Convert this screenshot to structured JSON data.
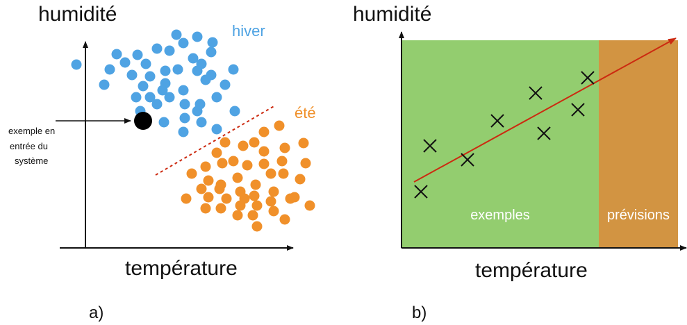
{
  "colors": {
    "winter": "#4fa3e3",
    "summer": "#f0902a",
    "examples_zone": "#93cd6f",
    "forecast_zone": "#d29442",
    "regression_line": "#cc2a10",
    "separator": "#cc2a10",
    "axis": "#111111"
  },
  "panel_a": {
    "caption": "a)",
    "ylabel": "humidité",
    "xlabel": "température",
    "winter_label": "hiver",
    "summer_label": "été",
    "input_label_lines": [
      "exemple  en",
      "entrée du",
      "système"
    ],
    "winter_points": [
      [
        110,
        93
      ],
      [
        168,
        78
      ],
      [
        180,
        90
      ],
      [
        198,
        79
      ],
      [
        226,
        70
      ],
      [
        254,
        50
      ],
      [
        264,
        62
      ],
      [
        284,
        53
      ],
      [
        306,
        61
      ],
      [
        304,
        75
      ],
      [
        244,
        73
      ],
      [
        278,
        84
      ],
      [
        290,
        92
      ],
      [
        158,
        100
      ],
      [
        190,
        108
      ],
      [
        210,
        92
      ],
      [
        216,
        110
      ],
      [
        238,
        102
      ],
      [
        256,
        100
      ],
      [
        284,
        102
      ],
      [
        304,
        108
      ],
      [
        336,
        100
      ],
      [
        150,
        122
      ],
      [
        206,
        124
      ],
      [
        238,
        120
      ],
      [
        264,
        130
      ],
      [
        296,
        115
      ],
      [
        324,
        122
      ],
      [
        196,
        140
      ],
      [
        216,
        140
      ],
      [
        234,
        130
      ],
      [
        244,
        140
      ],
      [
        266,
        150
      ],
      [
        288,
        150
      ],
      [
        312,
        140
      ],
      [
        202,
        160
      ],
      [
        226,
        150
      ],
      [
        284,
        160
      ],
      [
        338,
        160
      ],
      [
        236,
        176
      ],
      [
        266,
        170
      ],
      [
        290,
        176
      ],
      [
        264,
        190
      ],
      [
        312,
        186
      ]
    ],
    "summer_points": [
      [
        402,
        181
      ],
      [
        380,
        190
      ],
      [
        366,
        205
      ],
      [
        324,
        205
      ],
      [
        312,
        220
      ],
      [
        350,
        210
      ],
      [
        380,
        218
      ],
      [
        410,
        213
      ],
      [
        437,
        206
      ],
      [
        296,
        240
      ],
      [
        320,
        235
      ],
      [
        336,
        232
      ],
      [
        356,
        238
      ],
      [
        380,
        236
      ],
      [
        406,
        232
      ],
      [
        440,
        235
      ],
      [
        276,
        250
      ],
      [
        300,
        260
      ],
      [
        318,
        266
      ],
      [
        342,
        256
      ],
      [
        368,
        266
      ],
      [
        390,
        250
      ],
      [
        408,
        250
      ],
      [
        432,
        258
      ],
      [
        290,
        272
      ],
      [
        316,
        272
      ],
      [
        346,
        276
      ],
      [
        366,
        282
      ],
      [
        394,
        276
      ],
      [
        424,
        284
      ],
      [
        268,
        286
      ],
      [
        300,
        284
      ],
      [
        326,
        286
      ],
      [
        352,
        286
      ],
      [
        390,
        290
      ],
      [
        418,
        286
      ],
      [
        446,
        296
      ],
      [
        296,
        300
      ],
      [
        318,
        300
      ],
      [
        346,
        296
      ],
      [
        370,
        296
      ],
      [
        394,
        304
      ],
      [
        342,
        310
      ],
      [
        364,
        310
      ],
      [
        410,
        316
      ],
      [
        370,
        326
      ]
    ],
    "input_point": [
      206,
      174
    ]
  },
  "panel_b": {
    "caption": "b)",
    "ylabel": "humidité",
    "xlabel": "température",
    "examples_label": "exemples",
    "forecast_label": "prévisions",
    "observations": [
      [
        606,
        276
      ],
      [
        619,
        210
      ],
      [
        673,
        230
      ],
      [
        716,
        174
      ],
      [
        771,
        134
      ],
      [
        783,
        192
      ],
      [
        832,
        158
      ],
      [
        846,
        112
      ]
    ]
  }
}
